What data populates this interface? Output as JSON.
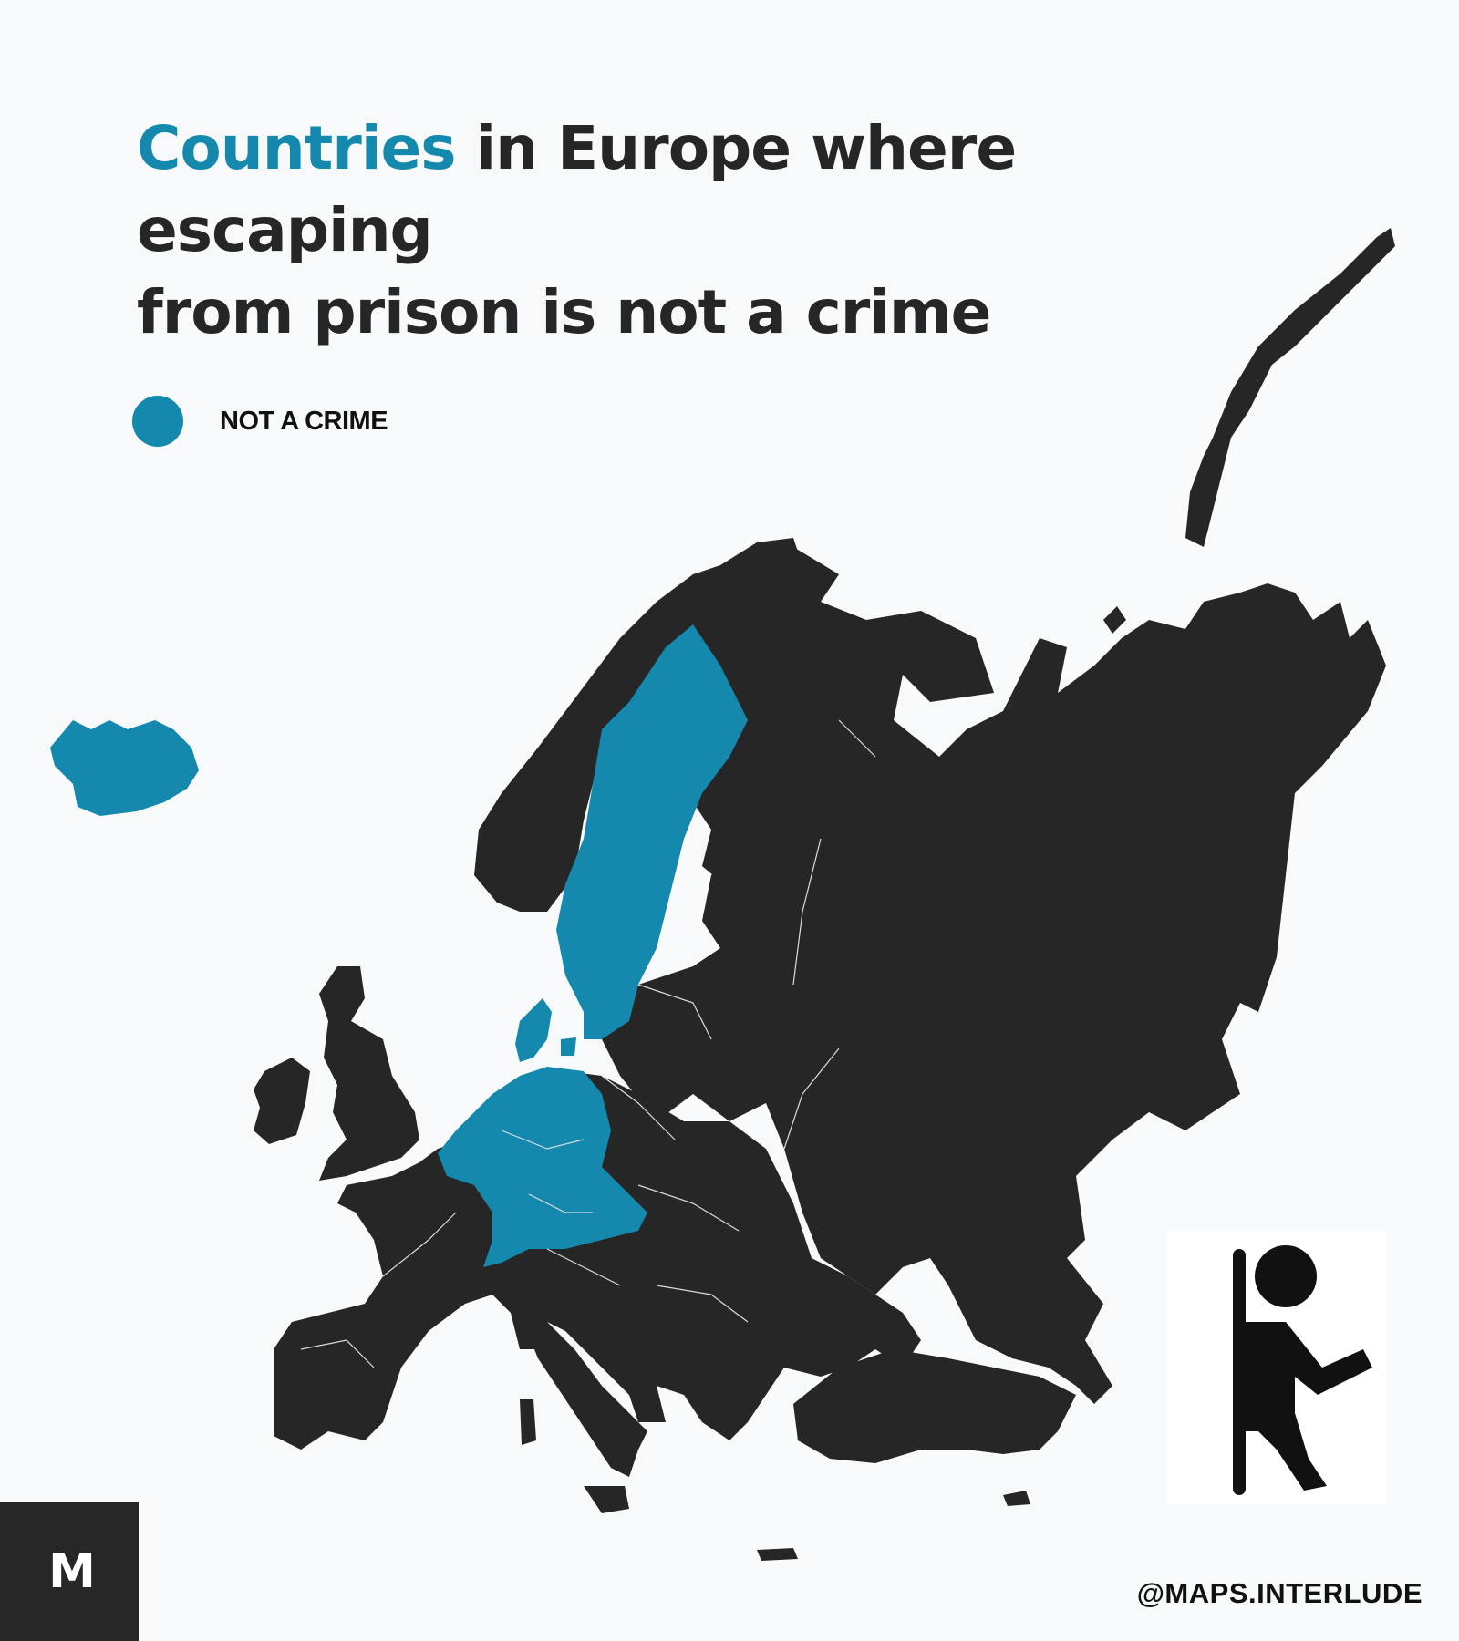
{
  "title": {
    "highlight": "Countries",
    "rest_line1": " in Europe where escaping",
    "line2": "from prison is not a crime"
  },
  "legend": {
    "label": "NOT A CRIME",
    "color": "#1489ad"
  },
  "map": {
    "base_color": "#262626",
    "highlight_color": "#1489ad",
    "highlighted_countries": [
      "Iceland",
      "Sweden",
      "Denmark",
      "Netherlands",
      "Belgium",
      "Luxembourg",
      "Germany",
      "Switzerland",
      "Austria"
    ]
  },
  "brand": {
    "logo_text": "M",
    "handle": "@MAPS.INTERLUDE"
  },
  "icons": {
    "escape": "person-escaping-icon"
  }
}
